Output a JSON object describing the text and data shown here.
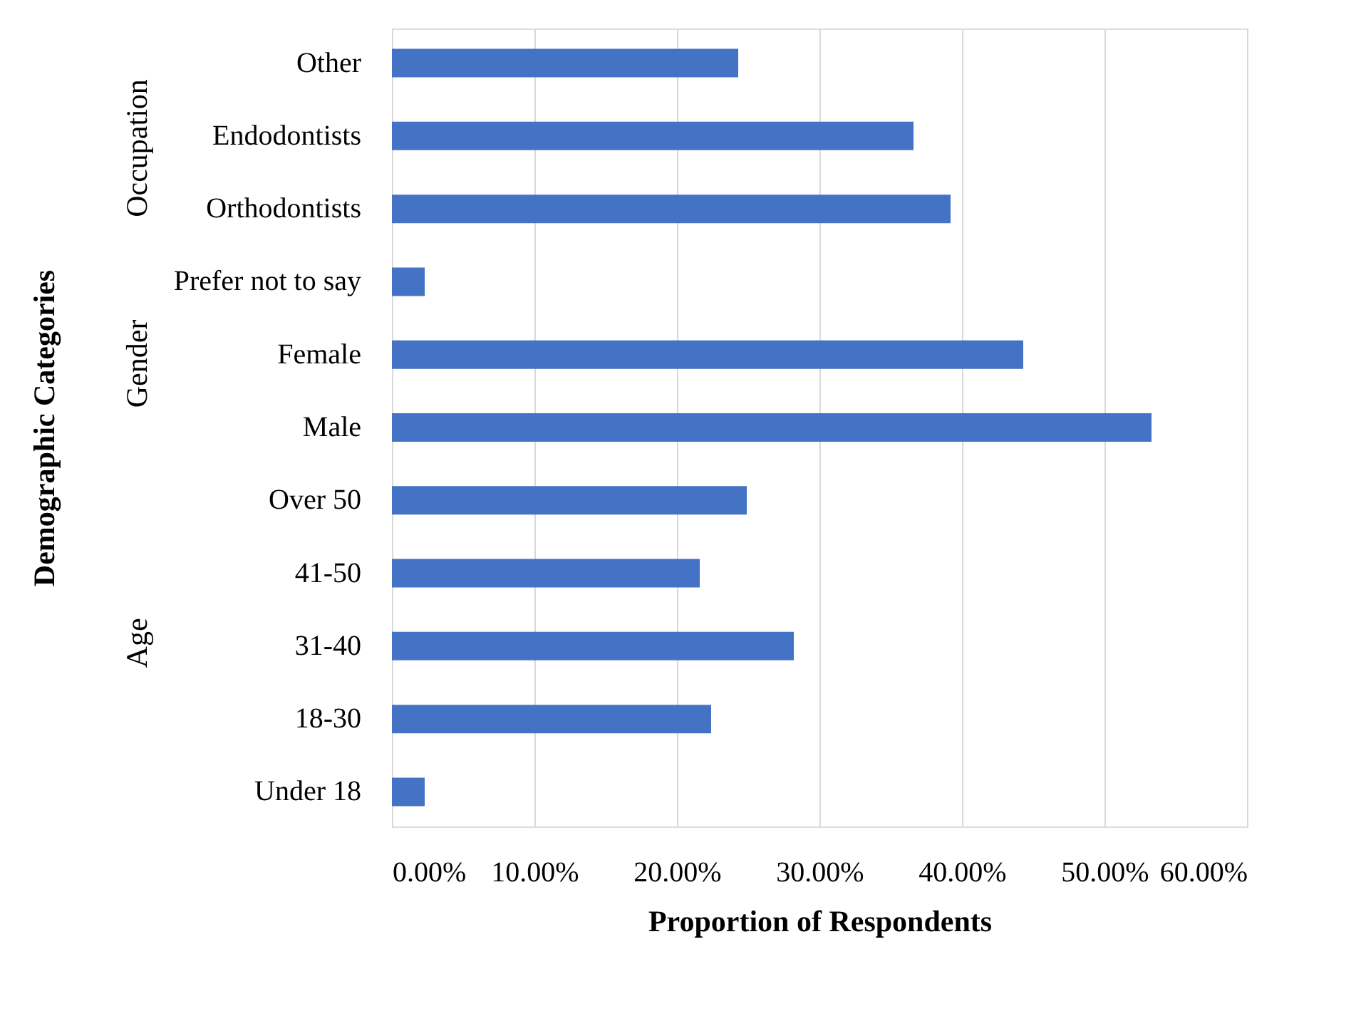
{
  "chart_data": {
    "type": "bar",
    "orientation": "horizontal",
    "xlabel": "Proportion of Respondents",
    "ylabel": "Demographic Categories",
    "categories": [
      "Other",
      "Endodontists",
      "Orthodontists",
      "Prefer not to say",
      "Female",
      "Male",
      "Over 50",
      "41-50",
      "31-40",
      "18-30",
      "Under 18"
    ],
    "values": [
      24.3,
      36.6,
      39.2,
      2.3,
      44.3,
      53.3,
      24.9,
      21.6,
      28.2,
      22.4,
      2.3
    ],
    "color": "#4472c4",
    "xlim": [
      0,
      60
    ],
    "xticks": [
      {
        "value": 0,
        "label": "0.00%"
      },
      {
        "value": 10,
        "label": "10.00%"
      },
      {
        "value": 20,
        "label": "20.00%"
      },
      {
        "value": 30,
        "label": "30.00%"
      },
      {
        "value": 40,
        "label": "40.00%"
      },
      {
        "value": 50,
        "label": "50.00%"
      },
      {
        "value": 60,
        "label": "60.00%"
      }
    ],
    "grid": "x",
    "annotations": [
      "Occupation",
      "Gender",
      "Age"
    ]
  }
}
